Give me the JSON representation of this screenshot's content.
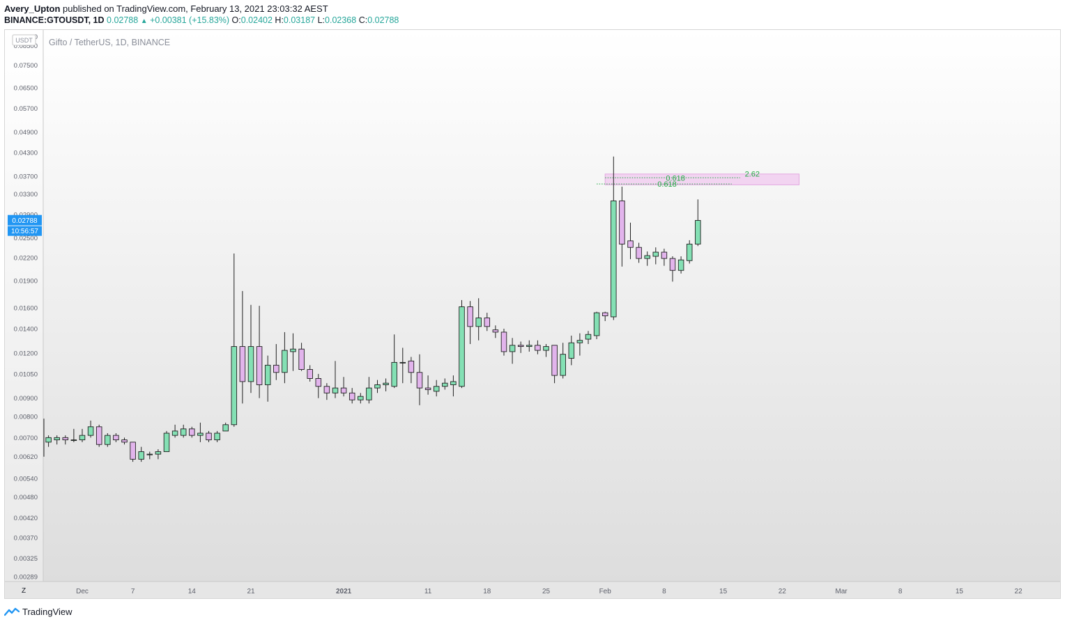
{
  "header": {
    "author": "Avery_Upton",
    "published": " published on TradingView.com, February 13, 2021 23:03:32 AEST",
    "symbol": "BINANCE:GTOUSDT, 1D",
    "last": "0.02788",
    "change_arrow": "▲",
    "change": "+0.00381 (+15.83%)",
    "o_label": "O:",
    "o": "0.02402",
    "h_label": "H:",
    "h": "0.03187",
    "l_label": "L:",
    "l": "0.02368",
    "c_label": "C:",
    "c": "0.02788"
  },
  "footer": {
    "brand": "TradingView",
    "logo_icon": "tradingview-logo-icon"
  },
  "colors": {
    "up": "#84e0b4",
    "down": "#e2b4ec",
    "wick": "#1f1f1f",
    "accent": "#2196f3",
    "fib_text": "#22aa44",
    "fib_zone": "#f0c8ef"
  },
  "chart_data": {
    "type": "candlestick",
    "title": "Gifto / TetherUS, 1D, BINANCE",
    "currency_badge": "USDT",
    "y_scale": "log",
    "ylim": [
      0.0028,
      0.093
    ],
    "y_ticks": [
      "0.09000",
      "0.08500",
      "0.07500",
      "0.06500",
      "0.05700",
      "0.04900",
      "0.04300",
      "0.03700",
      "0.03300",
      "0.02900",
      "0.02500",
      "0.02200",
      "0.01900",
      "0.01600",
      "0.01400",
      "0.01200",
      "0.01050",
      "0.00900",
      "0.00800",
      "0.00700",
      "0.00620",
      "0.00540",
      "0.00480",
      "0.00420",
      "0.00370",
      "0.00325",
      "0.00289"
    ],
    "x_ticks": [
      "Dec",
      "7",
      "14",
      "21",
      "2021",
      "11",
      "18",
      "25",
      "Feb",
      "8",
      "15",
      "22",
      "Mar",
      "8",
      "15",
      "22"
    ],
    "x_tick_dates": [
      "2020-12-01",
      "2020-12-07",
      "2020-12-14",
      "2020-12-21",
      "2021-01-01",
      "2021-01-11",
      "2021-01-18",
      "2021-01-25",
      "2021-02-01",
      "2021-02-08",
      "2021-02-15",
      "2021-02-22",
      "2021-03-01",
      "2021-03-08",
      "2021-03-15",
      "2021-03-22"
    ],
    "scale_button": "Z",
    "last_price_label": "0.02788",
    "countdown_label": "10:56:57",
    "candles": [
      {
        "date": "2020-11-25",
        "o": 0.0074,
        "h": 0.0079,
        "l": 0.0065,
        "c": 0.0068
      },
      {
        "date": "2020-11-26",
        "o": 0.0066,
        "h": 0.007,
        "l": 0.0062,
        "c": 0.0068
      },
      {
        "date": "2020-11-27",
        "o": 0.0068,
        "h": 0.0071,
        "l": 0.0066,
        "c": 0.007
      },
      {
        "date": "2020-11-28",
        "o": 0.0069,
        "h": 0.0071,
        "l": 0.0067,
        "c": 0.007
      },
      {
        "date": "2020-11-29",
        "o": 0.007,
        "h": 0.0071,
        "l": 0.0067,
        "c": 0.0069
      },
      {
        "date": "2020-11-30",
        "o": 0.0069,
        "h": 0.0074,
        "l": 0.0068,
        "c": 0.0069
      },
      {
        "date": "2020-12-01",
        "o": 0.0069,
        "h": 0.0074,
        "l": 0.0068,
        "c": 0.0071
      },
      {
        "date": "2020-12-02",
        "o": 0.0071,
        "h": 0.0078,
        "l": 0.007,
        "c": 0.0075
      },
      {
        "date": "2020-12-03",
        "o": 0.0075,
        "h": 0.0076,
        "l": 0.0066,
        "c": 0.0067
      },
      {
        "date": "2020-12-04",
        "o": 0.0067,
        "h": 0.0072,
        "l": 0.0066,
        "c": 0.0071
      },
      {
        "date": "2020-12-05",
        "o": 0.0071,
        "h": 0.0072,
        "l": 0.0068,
        "c": 0.0069
      },
      {
        "date": "2020-12-06",
        "o": 0.0069,
        "h": 0.007,
        "l": 0.0067,
        "c": 0.0068
      },
      {
        "date": "2020-12-07",
        "o": 0.0068,
        "h": 0.0068,
        "l": 0.006,
        "c": 0.0061
      },
      {
        "date": "2020-12-08",
        "o": 0.0061,
        "h": 0.0066,
        "l": 0.006,
        "c": 0.0064
      },
      {
        "date": "2020-12-09",
        "o": 0.0063,
        "h": 0.0064,
        "l": 0.0061,
        "c": 0.0063
      },
      {
        "date": "2020-12-10",
        "o": 0.0063,
        "h": 0.0065,
        "l": 0.0061,
        "c": 0.0064
      },
      {
        "date": "2020-12-11",
        "o": 0.0064,
        "h": 0.0073,
        "l": 0.0064,
        "c": 0.0072
      },
      {
        "date": "2020-12-12",
        "o": 0.0071,
        "h": 0.0076,
        "l": 0.007,
        "c": 0.0073
      },
      {
        "date": "2020-12-13",
        "o": 0.0071,
        "h": 0.0076,
        "l": 0.007,
        "c": 0.0074
      },
      {
        "date": "2020-12-14",
        "o": 0.0074,
        "h": 0.0075,
        "l": 0.007,
        "c": 0.0071
      },
      {
        "date": "2020-12-15",
        "o": 0.0071,
        "h": 0.0077,
        "l": 0.0068,
        "c": 0.0072
      },
      {
        "date": "2020-12-16",
        "o": 0.0072,
        "h": 0.0073,
        "l": 0.0068,
        "c": 0.0069
      },
      {
        "date": "2020-12-17",
        "o": 0.0069,
        "h": 0.0073,
        "l": 0.0068,
        "c": 0.0072
      },
      {
        "date": "2020-12-18",
        "o": 0.0073,
        "h": 0.0077,
        "l": 0.0073,
        "c": 0.0076
      },
      {
        "date": "2020-12-19",
        "o": 0.0076,
        "h": 0.0226,
        "l": 0.0075,
        "c": 0.0125
      },
      {
        "date": "2020-12-20",
        "o": 0.0125,
        "h": 0.0178,
        "l": 0.0087,
        "c": 0.01
      },
      {
        "date": "2020-12-21",
        "o": 0.01,
        "h": 0.0163,
        "l": 0.0093,
        "c": 0.0125
      },
      {
        "date": "2020-12-22",
        "o": 0.0125,
        "h": 0.0162,
        "l": 0.009,
        "c": 0.0098
      },
      {
        "date": "2020-12-23",
        "o": 0.0098,
        "h": 0.0118,
        "l": 0.0088,
        "c": 0.0111
      },
      {
        "date": "2020-12-24",
        "o": 0.0111,
        "h": 0.0127,
        "l": 0.0101,
        "c": 0.0106
      },
      {
        "date": "2020-12-25",
        "o": 0.0106,
        "h": 0.0137,
        "l": 0.0099,
        "c": 0.0122
      },
      {
        "date": "2020-12-26",
        "o": 0.0121,
        "h": 0.0136,
        "l": 0.0107,
        "c": 0.0123
      },
      {
        "date": "2020-12-27",
        "o": 0.0123,
        "h": 0.0128,
        "l": 0.0107,
        "c": 0.0108
      },
      {
        "date": "2020-12-28",
        "o": 0.0108,
        "h": 0.0111,
        "l": 0.01,
        "c": 0.0102
      },
      {
        "date": "2020-12-29",
        "o": 0.0102,
        "h": 0.0105,
        "l": 0.009,
        "c": 0.0097
      },
      {
        "date": "2020-12-30",
        "o": 0.0097,
        "h": 0.0099,
        "l": 0.0089,
        "c": 0.0093
      },
      {
        "date": "2020-12-31",
        "o": 0.0093,
        "h": 0.0114,
        "l": 0.009,
        "c": 0.0096
      },
      {
        "date": "2021-01-01",
        "o": 0.0096,
        "h": 0.0103,
        "l": 0.0091,
        "c": 0.0093
      },
      {
        "date": "2021-01-02",
        "o": 0.0093,
        "h": 0.0096,
        "l": 0.0087,
        "c": 0.0089
      },
      {
        "date": "2021-01-03",
        "o": 0.0089,
        "h": 0.0093,
        "l": 0.0087,
        "c": 0.0091
      },
      {
        "date": "2021-01-04",
        "o": 0.0089,
        "h": 0.0103,
        "l": 0.0087,
        "c": 0.0096
      },
      {
        "date": "2021-01-05",
        "o": 0.0096,
        "h": 0.0101,
        "l": 0.0093,
        "c": 0.0098
      },
      {
        "date": "2021-01-06",
        "o": 0.0098,
        "h": 0.0102,
        "l": 0.0094,
        "c": 0.0099
      },
      {
        "date": "2021-01-07",
        "o": 0.0097,
        "h": 0.0135,
        "l": 0.0096,
        "c": 0.0113
      },
      {
        "date": "2021-01-08",
        "o": 0.0113,
        "h": 0.0124,
        "l": 0.0099,
        "c": 0.0113
      },
      {
        "date": "2021-01-09",
        "o": 0.0114,
        "h": 0.0117,
        "l": 0.0099,
        "c": 0.0106
      },
      {
        "date": "2021-01-10",
        "o": 0.0106,
        "h": 0.0119,
        "l": 0.0086,
        "c": 0.0096
      },
      {
        "date": "2021-01-11",
        "o": 0.0096,
        "h": 0.0104,
        "l": 0.0092,
        "c": 0.0095
      },
      {
        "date": "2021-01-12",
        "o": 0.0094,
        "h": 0.0101,
        "l": 0.0091,
        "c": 0.0097
      },
      {
        "date": "2021-01-13",
        "o": 0.0097,
        "h": 0.0102,
        "l": 0.0095,
        "c": 0.0099
      },
      {
        "date": "2021-01-14",
        "o": 0.0098,
        "h": 0.0104,
        "l": 0.0091,
        "c": 0.01
      },
      {
        "date": "2021-01-15",
        "o": 0.0097,
        "h": 0.0168,
        "l": 0.0096,
        "c": 0.0161
      },
      {
        "date": "2021-01-16",
        "o": 0.0161,
        "h": 0.0167,
        "l": 0.0127,
        "c": 0.0142
      },
      {
        "date": "2021-01-17",
        "o": 0.0142,
        "h": 0.017,
        "l": 0.013,
        "c": 0.015
      },
      {
        "date": "2021-01-18",
        "o": 0.015,
        "h": 0.0155,
        "l": 0.0138,
        "c": 0.0142
      },
      {
        "date": "2021-01-19",
        "o": 0.0139,
        "h": 0.0143,
        "l": 0.0132,
        "c": 0.0137
      },
      {
        "date": "2021-01-20",
        "o": 0.0137,
        "h": 0.014,
        "l": 0.0118,
        "c": 0.0121
      },
      {
        "date": "2021-01-21",
        "o": 0.0121,
        "h": 0.0132,
        "l": 0.0112,
        "c": 0.0126
      },
      {
        "date": "2021-01-22",
        "o": 0.0126,
        "h": 0.0129,
        "l": 0.012,
        "c": 0.0125
      },
      {
        "date": "2021-01-23",
        "o": 0.0125,
        "h": 0.013,
        "l": 0.0121,
        "c": 0.0126
      },
      {
        "date": "2021-01-24",
        "o": 0.0126,
        "h": 0.013,
        "l": 0.0119,
        "c": 0.0122
      },
      {
        "date": "2021-01-25",
        "o": 0.0122,
        "h": 0.0127,
        "l": 0.0117,
        "c": 0.0125
      },
      {
        "date": "2021-01-26",
        "o": 0.0126,
        "h": 0.0126,
        "l": 0.0099,
        "c": 0.0104
      },
      {
        "date": "2021-01-27",
        "o": 0.0104,
        "h": 0.0128,
        "l": 0.0102,
        "c": 0.0119
      },
      {
        "date": "2021-01-28",
        "o": 0.0116,
        "h": 0.0134,
        "l": 0.0111,
        "c": 0.0128
      },
      {
        "date": "2021-01-29",
        "o": 0.0128,
        "h": 0.0136,
        "l": 0.0118,
        "c": 0.013
      },
      {
        "date": "2021-01-30",
        "o": 0.0131,
        "h": 0.0138,
        "l": 0.0127,
        "c": 0.0135
      },
      {
        "date": "2021-01-31",
        "o": 0.0134,
        "h": 0.0156,
        "l": 0.0131,
        "c": 0.0155
      },
      {
        "date": "2021-02-01",
        "o": 0.0155,
        "h": 0.0156,
        "l": 0.0147,
        "c": 0.0152
      },
      {
        "date": "2021-02-02",
        "o": 0.0151,
        "h": 0.0419,
        "l": 0.0148,
        "c": 0.0316
      },
      {
        "date": "2021-02-03",
        "o": 0.0316,
        "h": 0.0346,
        "l": 0.0208,
        "c": 0.024
      },
      {
        "date": "2021-02-04",
        "o": 0.0245,
        "h": 0.0275,
        "l": 0.0218,
        "c": 0.0235
      },
      {
        "date": "2021-02-05",
        "o": 0.0235,
        "h": 0.0242,
        "l": 0.0213,
        "c": 0.0219
      },
      {
        "date": "2021-02-06",
        "o": 0.0219,
        "h": 0.0229,
        "l": 0.0209,
        "c": 0.0223
      },
      {
        "date": "2021-02-07",
        "o": 0.0222,
        "h": 0.0235,
        "l": 0.0211,
        "c": 0.0228
      },
      {
        "date": "2021-02-08",
        "o": 0.0228,
        "h": 0.0233,
        "l": 0.0209,
        "c": 0.0219
      },
      {
        "date": "2021-02-09",
        "o": 0.0219,
        "h": 0.0222,
        "l": 0.0189,
        "c": 0.0203
      },
      {
        "date": "2021-02-10",
        "o": 0.0203,
        "h": 0.0222,
        "l": 0.0199,
        "c": 0.0217
      },
      {
        "date": "2021-02-11",
        "o": 0.0216,
        "h": 0.0246,
        "l": 0.0212,
        "c": 0.024
      },
      {
        "date": "2021-02-12",
        "o": 0.024,
        "h": 0.0319,
        "l": 0.0237,
        "c": 0.0279
      }
    ],
    "annotations": [
      {
        "type": "fib_zone",
        "label": "2.62",
        "date_from": "2021-02-01",
        "date_to": "2021-02-24",
        "price_top": 0.0375,
        "price_bottom": 0.035
      },
      {
        "type": "fib_level",
        "label": "0.618",
        "date_from": "2021-02-01",
        "date_to": "2021-02-17",
        "price": 0.0366
      },
      {
        "type": "fib_level",
        "label": "0.618",
        "date_from": "2021-01-31",
        "date_to": "2021-02-16",
        "price": 0.0352
      }
    ]
  }
}
